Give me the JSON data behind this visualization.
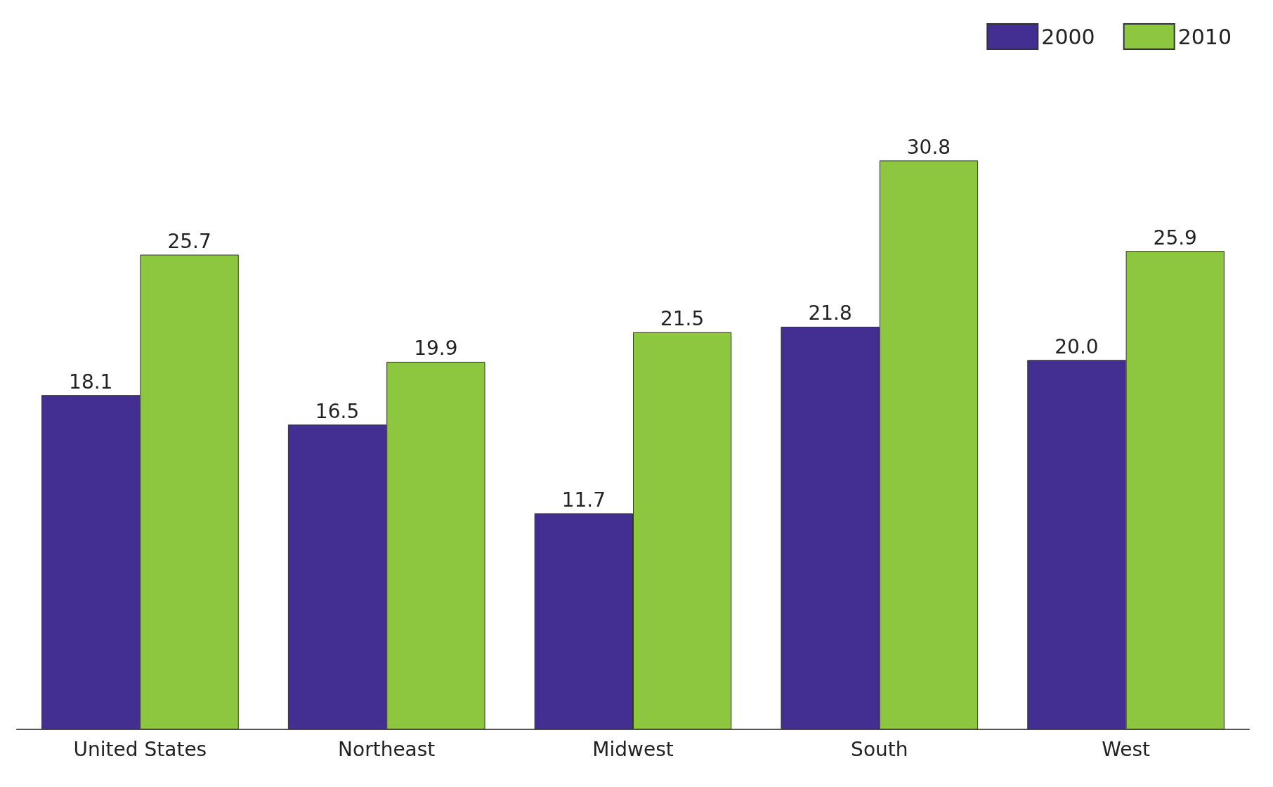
{
  "chart_data": {
    "type": "bar",
    "categories": [
      "United States",
      "Northeast",
      "Midwest",
      "South",
      "West"
    ],
    "series": [
      {
        "name": "2000",
        "color": "#432e92",
        "values": [
          18.1,
          16.5,
          11.7,
          21.8,
          20.0
        ],
        "value_labels": [
          "18.1",
          "16.5",
          "11.7",
          "21.8",
          "20.0"
        ]
      },
      {
        "name": "2010",
        "color": "#8dc63f",
        "values": [
          25.7,
          19.9,
          21.5,
          30.8,
          25.9
        ],
        "value_labels": [
          "25.7",
          "19.9",
          "21.5",
          "30.8",
          "25.9"
        ]
      }
    ],
    "legend": "top right"
  }
}
